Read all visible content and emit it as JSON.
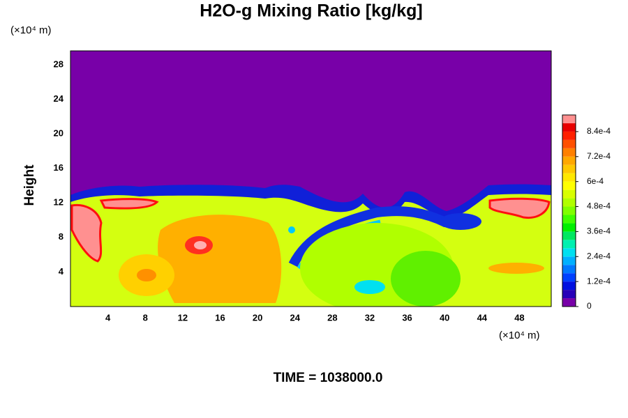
{
  "chart_data": {
    "type": "contour",
    "title": "H2O-g Mixing Ratio [kg/kg]",
    "y_label": "Height",
    "y_unit": "(×10⁴ m)",
    "x_unit": "(×10⁴ m)",
    "footer": "TIME = 1038000.0",
    "xlim": [
      0,
      51.4
    ],
    "ylim": [
      0,
      29.6
    ],
    "xticks": [
      4,
      8,
      12,
      16,
      20,
      24,
      28,
      32,
      36,
      40,
      44,
      48
    ],
    "yticks": [
      4,
      8,
      12,
      16,
      20,
      24,
      28
    ],
    "colorbar": {
      "levels": [
        0,
        4e-05,
        8e-05,
        0.00012,
        0.00016,
        0.0002,
        0.00024,
        0.00028,
        0.00032,
        0.00036,
        0.0004,
        0.00044,
        0.00048,
        0.00052,
        0.00056,
        0.0006,
        0.00064,
        0.00068,
        0.00072,
        0.00076,
        0.0008,
        0.00084,
        0.00088,
        0.00092
      ],
      "colors": [
        "#7800a8",
        "#2800b8",
        "#0010e0",
        "#0040ff",
        "#0078ff",
        "#00b0ff",
        "#00e0f0",
        "#00f0b0",
        "#00e860",
        "#00f000",
        "#40ff00",
        "#80ff00",
        "#b0ff00",
        "#d8ff00",
        "#ffff00",
        "#ffe800",
        "#ffc800",
        "#ffa800",
        "#ff8000",
        "#ff5000",
        "#ff2000",
        "#e80000",
        "#ff9090"
      ],
      "ticks": [
        0,
        {
          "value": 0.00012,
          "label": "1.2e-4"
        },
        {
          "value": 0.00024,
          "label": "2.4e-4"
        },
        {
          "value": 0.00036,
          "label": "3.6e-4"
        },
        {
          "value": 0.00048,
          "label": "4.8e-4"
        },
        {
          "value": 0.0006,
          "label": "6e-4"
        },
        {
          "value": 0.00072,
          "label": "7.2e-4"
        },
        {
          "value": 0.00084,
          "label": "8.4e-4"
        }
      ]
    }
  }
}
